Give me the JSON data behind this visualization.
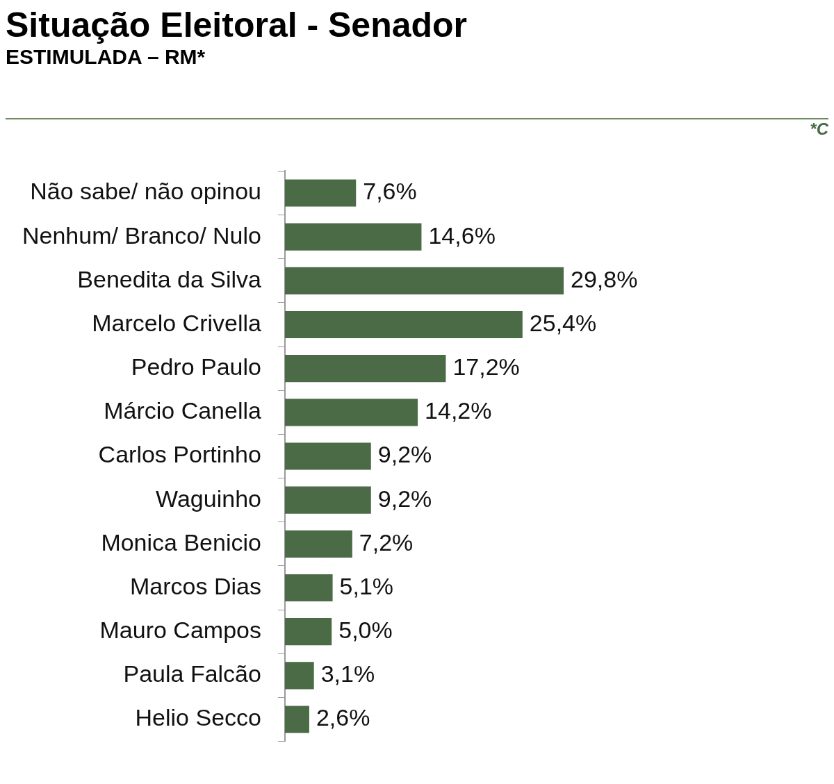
{
  "chart_data": {
    "type": "bar",
    "orientation": "horizontal",
    "title": "Situação Eleitoral - Senador",
    "subtitle": "ESTIMULADA – RM*",
    "annotations": [
      "*C"
    ],
    "categories": [
      "Não sabe/ não opinou",
      "Nenhum/ Branco/ Nulo",
      "Benedita da Silva",
      "Marcelo Crivella",
      "Pedro Paulo",
      "Márcio Canella",
      "Carlos Portinho",
      "Waguinho",
      "Monica Benicio",
      "Marcos Dias",
      "Mauro Campos",
      "Paula Falcão",
      "Helio Secco"
    ],
    "values": [
      7.6,
      14.6,
      29.8,
      25.4,
      17.2,
      14.2,
      9.2,
      9.2,
      7.2,
      5.1,
      5.0,
      3.1,
      2.6
    ],
    "value_labels": [
      "7,6%",
      "14,6%",
      "29,8%",
      "25,4%",
      "17,2%",
      "14,2%",
      "9,2%",
      "9,2%",
      "7,2%",
      "5,1%",
      "5,0%",
      "3,1%",
      "2,6%"
    ],
    "color": "#4a6b45",
    "grid": false,
    "legend": false
  }
}
